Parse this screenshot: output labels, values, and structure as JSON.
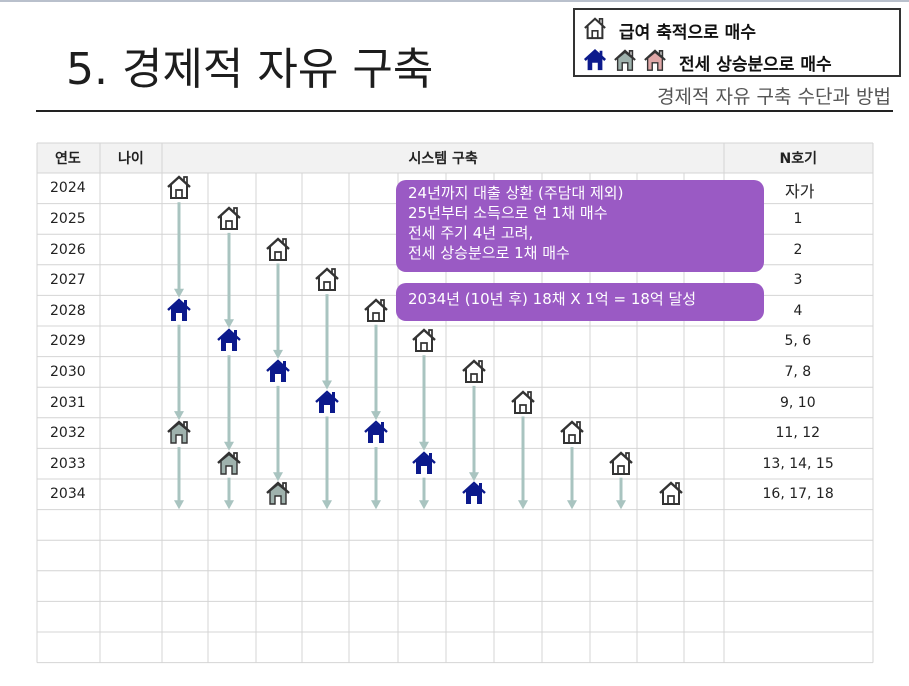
{
  "slide": {
    "title": "5. 경제적 자유 구축",
    "subtitle": "경제적 자유 구축 수단과 방법"
  },
  "legend": {
    "row1_text": "급여 축적으로 매수",
    "row2_text": "전세 상승분으로 매수",
    "icons_row1": [
      "house-outline-icon"
    ],
    "icons_row2": [
      "house-navy-icon",
      "house-gray-icon",
      "house-pink-icon"
    ]
  },
  "table": {
    "headers": {
      "year": "연도",
      "age": "나이",
      "system": "시스템 구축",
      "count": "N호기"
    },
    "years": [
      "2024",
      "2025",
      "2026",
      "2027",
      "2028",
      "2029",
      "2030",
      "2031",
      "2032",
      "2033",
      "2034"
    ],
    "counts": [
      "자가",
      "1",
      "2",
      "3",
      "4",
      "5, 6",
      "7, 8",
      "9, 10",
      "11, 12",
      "13, 14, 15",
      "16, 17, 18"
    ]
  },
  "notes": {
    "plan_lines": [
      "24년까지 대출 상환 (주담대 제외)",
      "25년부터  소득으로 연 1채 매수",
      "전세 주기 4년 고려,",
      "전세 상승분으로 1채 매수"
    ],
    "result": "2034년 (10년  후) 18채 X 1억 = 18억 달성"
  },
  "colors": {
    "navy_house": "#0c1a8c",
    "gray_house": "#9fb2ad",
    "pink_house": "#e0a8a8",
    "arrow": "#a9c4c0",
    "note_bg": "#9a5ac4",
    "header_bg": "#f2f2f2",
    "grid": "#d4d4d4"
  }
}
